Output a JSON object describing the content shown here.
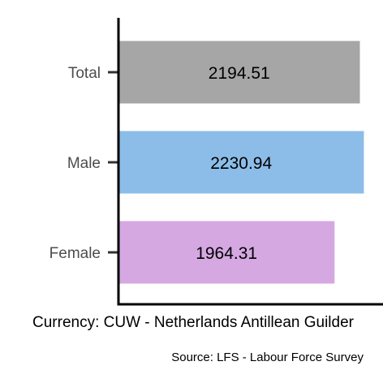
{
  "chart_data": {
    "type": "bar",
    "orientation": "horizontal",
    "categories": [
      "Total",
      "Male",
      "Female"
    ],
    "values": [
      2194.51,
      2230.94,
      1964.31
    ],
    "value_labels": [
      "2194.51",
      "2230.94",
      "1964.31"
    ],
    "colors": [
      "#a6a6a6",
      "#8cbde8",
      "#d5a8e2"
    ],
    "xlabel": "Currency: CUW - Netherlands Antillean Guilder",
    "ylabel": "",
    "title": "",
    "xlim": [
      0,
      2235
    ],
    "grid": false,
    "legend": "none"
  },
  "caption": "Source:  LFS - Labour Force Survey"
}
